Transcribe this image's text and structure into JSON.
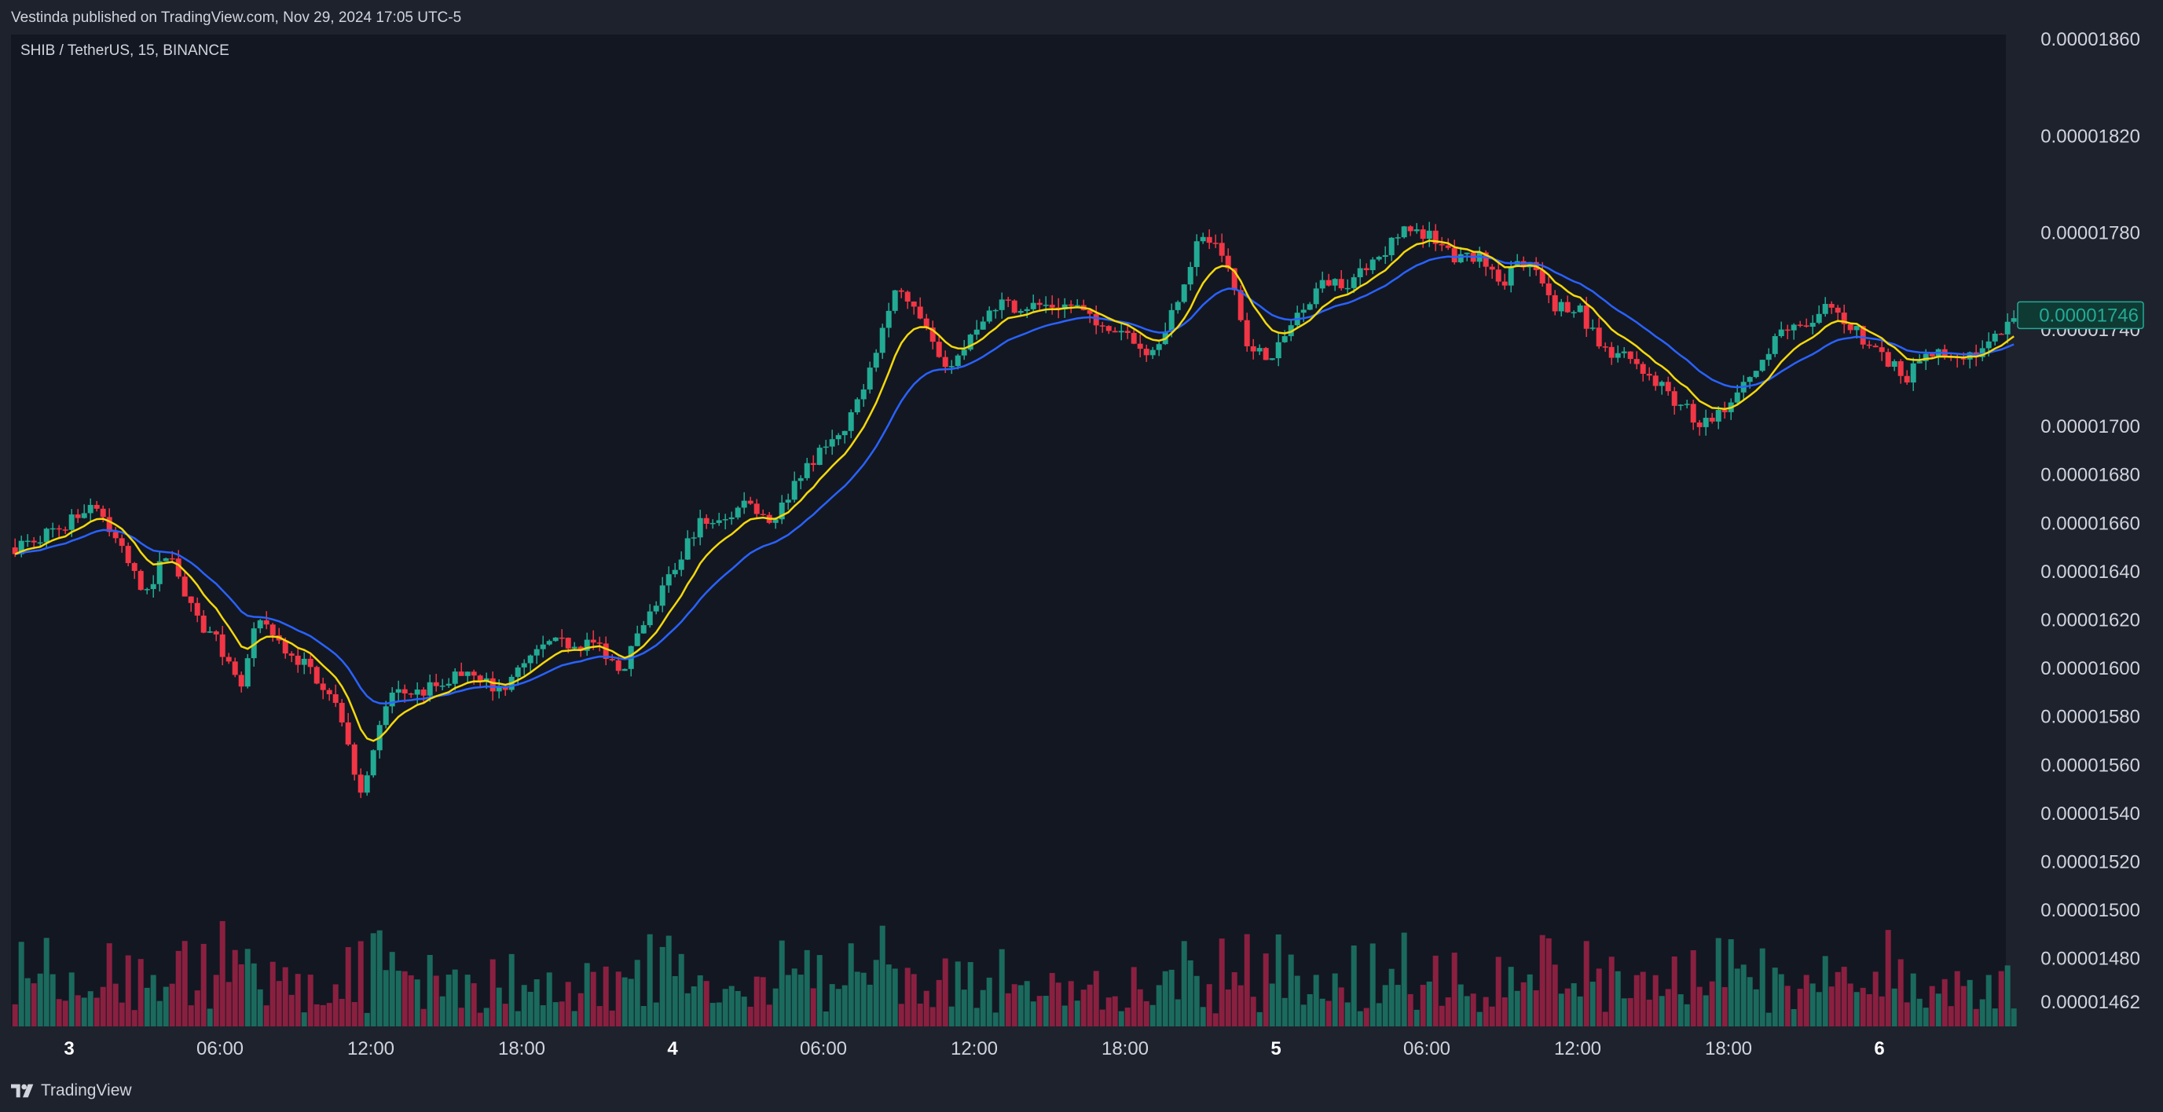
{
  "header": {
    "published": "Vestinda published on TradingView.com, Nov 29, 2024 17:05 UTC-5"
  },
  "symbol": "SHIB / TetherUS, 15, BINANCE",
  "footer": {
    "brand": "TradingView",
    "brand_icon": "tradingview-logo-icon"
  },
  "colors": {
    "up": "#22ab94",
    "down": "#f23645",
    "vol_up": "#1b6a5e",
    "vol_down": "#8a2040",
    "ema_fast": "#f5d90a",
    "ema_slow": "#2962ff",
    "last_price_bg": "#0f3a34",
    "last_price_border": "#22ab94"
  },
  "chart_data": {
    "type": "candlestick",
    "symbol": "SHIB / TetherUS",
    "interval": "15",
    "exchange": "BINANCE",
    "last_price": "0.00001746",
    "price_axis": {
      "ylim": [
        1.452e-05,
        1.862e-05
      ],
      "ticks": [
        "0.00001860",
        "0.00001820",
        "0.00001780",
        "0.00001740",
        "0.00001700",
        "0.00001680",
        "0.00001660",
        "0.00001640",
        "0.00001620",
        "0.00001600",
        "0.00001580",
        "0.00001560",
        "0.00001540",
        "0.00001520",
        "0.00001500",
        "0.00001480",
        "0.00001462"
      ]
    },
    "time_axis": {
      "ticks": [
        {
          "label": "3",
          "bold": true,
          "t": 0.0
        },
        {
          "label": "06:00",
          "bold": false,
          "t": 6.0
        },
        {
          "label": "12:00",
          "bold": false,
          "t": 12.0
        },
        {
          "label": "18:00",
          "bold": false,
          "t": 18.0
        },
        {
          "label": "4",
          "bold": true,
          "t": 24.0
        },
        {
          "label": "06:00",
          "bold": false,
          "t": 30.0
        },
        {
          "label": "12:00",
          "bold": false,
          "t": 36.0
        },
        {
          "label": "18:00",
          "bold": false,
          "t": 42.0
        },
        {
          "label": "5",
          "bold": true,
          "t": 48.0
        },
        {
          "label": "06:00",
          "bold": false,
          "t": 54.0
        },
        {
          "label": "12:00",
          "bold": false,
          "t": 60.0
        },
        {
          "label": "18:00",
          "bold": false,
          "t": 66.0
        },
        {
          "label": "6",
          "bold": true,
          "t": 72.0
        }
      ]
    },
    "series": [
      {
        "name": "",
        "kind": "price",
        "approx_close_path": [
          [
            -2.2,
            1.65e-05
          ],
          [
            0,
            1.66e-05
          ],
          [
            1,
            1.67e-05
          ],
          [
            2,
            1.65e-05
          ],
          [
            3,
            1.63e-05
          ],
          [
            4,
            1.65e-05
          ],
          [
            5,
            1.62e-05
          ],
          [
            6,
            1.61e-05
          ],
          [
            6.8,
            1.59e-05
          ],
          [
            7.5,
            1.62e-05
          ],
          [
            8.5,
            1.61e-05
          ],
          [
            9.5,
            1.6e-05
          ],
          [
            10.5,
            1.59e-05
          ],
          [
            11,
            1.57e-05
          ],
          [
            11.6,
            1.55e-05
          ],
          [
            12.2,
            1.57e-05
          ],
          [
            12.8,
            1.59e-05
          ],
          [
            14,
            1.59e-05
          ],
          [
            16,
            1.6e-05
          ],
          [
            17,
            1.59e-05
          ],
          [
            18,
            1.6e-05
          ],
          [
            19,
            1.61e-05
          ],
          [
            20,
            1.61e-05
          ],
          [
            21,
            1.61e-05
          ],
          [
            22,
            1.6e-05
          ],
          [
            23,
            1.62e-05
          ],
          [
            24,
            1.64e-05
          ],
          [
            25,
            1.66e-05
          ],
          [
            26,
            1.66e-05
          ],
          [
            27,
            1.67e-05
          ],
          [
            28,
            1.66e-05
          ],
          [
            29,
            1.68e-05
          ],
          [
            30,
            1.69e-05
          ],
          [
            31,
            1.7e-05
          ],
          [
            32,
            1.73e-05
          ],
          [
            33,
            1.76e-05
          ],
          [
            34,
            1.74e-05
          ],
          [
            35,
            1.72e-05
          ],
          [
            36,
            1.74e-05
          ],
          [
            37,
            1.75e-05
          ],
          [
            38,
            1.75e-05
          ],
          [
            39,
            1.75e-05
          ],
          [
            40,
            1.75e-05
          ],
          [
            41,
            1.74e-05
          ],
          [
            42,
            1.74e-05
          ],
          [
            43,
            1.73e-05
          ],
          [
            44,
            1.75e-05
          ],
          [
            45,
            1.78e-05
          ],
          [
            46,
            1.77e-05
          ],
          [
            47,
            1.73e-05
          ],
          [
            48,
            1.73e-05
          ],
          [
            49,
            1.75e-05
          ],
          [
            50,
            1.76e-05
          ],
          [
            51,
            1.76e-05
          ],
          [
            52,
            1.77e-05
          ],
          [
            53,
            1.78e-05
          ],
          [
            54,
            1.78e-05
          ],
          [
            55,
            1.77e-05
          ],
          [
            56,
            1.77e-05
          ],
          [
            57,
            1.76e-05
          ],
          [
            58,
            1.77e-05
          ],
          [
            59,
            1.75e-05
          ],
          [
            60,
            1.75e-05
          ],
          [
            61,
            1.73e-05
          ],
          [
            62,
            1.73e-05
          ],
          [
            63,
            1.72e-05
          ],
          [
            64,
            1.71e-05
          ],
          [
            65,
            1.7e-05
          ],
          [
            66,
            1.71e-05
          ],
          [
            67,
            1.72e-05
          ],
          [
            68,
            1.74e-05
          ],
          [
            69,
            1.74e-05
          ],
          [
            70,
            1.75e-05
          ],
          [
            71,
            1.74e-05
          ],
          [
            72,
            1.73e-05
          ],
          [
            73,
            1.72e-05
          ],
          [
            74,
            1.73e-05
          ],
          [
            75,
            1.73e-05
          ],
          [
            76,
            1.73e-05
          ],
          [
            77,
            1.74e-05
          ],
          [
            77.5,
            1.746e-05
          ]
        ]
      },
      {
        "name": "",
        "kind": "ema_fast",
        "color": "#f5d90a"
      },
      {
        "name": "",
        "kind": "ema_slow",
        "color": "#2962ff"
      },
      {
        "name": "",
        "kind": "volume"
      }
    ]
  }
}
